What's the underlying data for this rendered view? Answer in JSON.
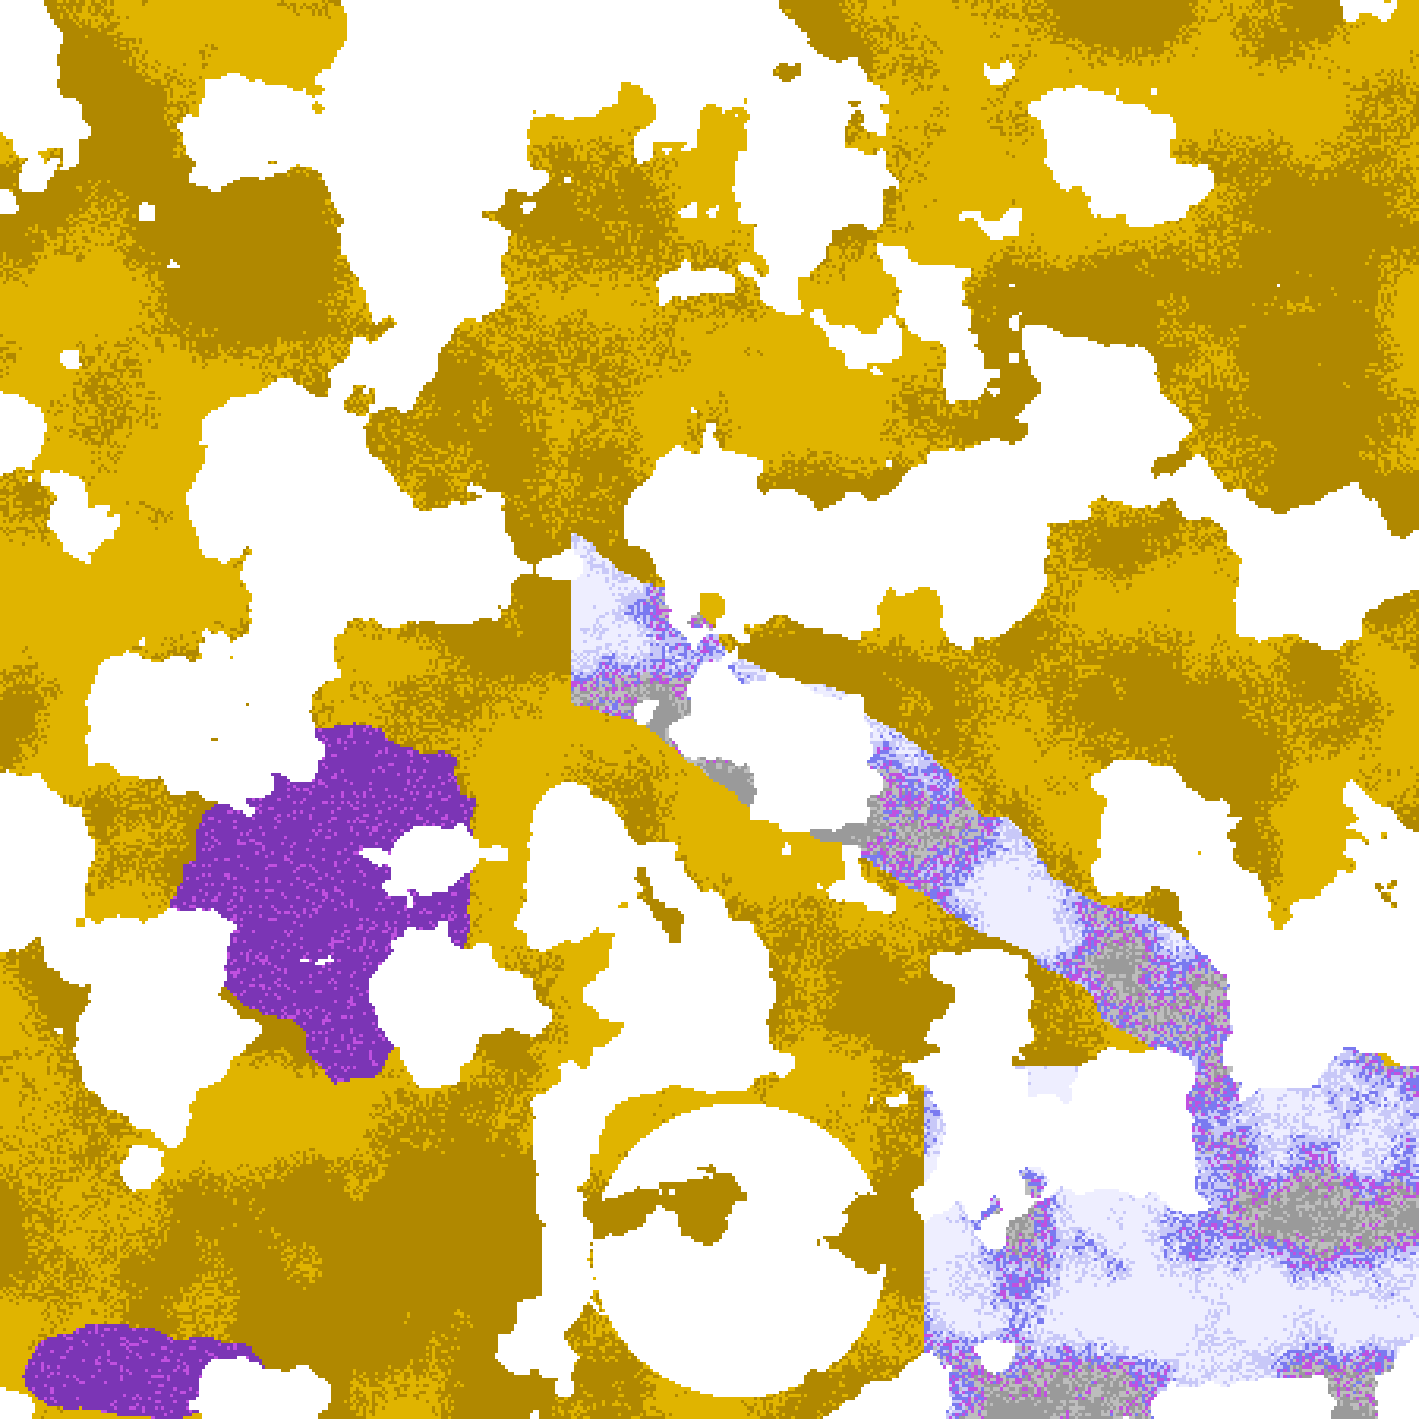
{
  "map": {
    "palette": {
      "clear": "#ffffff",
      "gold": "#e0b400",
      "dark_gold": "#b08800",
      "purple": "#7b35b5",
      "magenta": "#c050e0",
      "blue": "#7a7af0",
      "lavender": "#c8c8f8",
      "pale": "#eeeeff",
      "grey": "#9a9a9a",
      "light_grey": "#bdbdbd"
    }
  }
}
